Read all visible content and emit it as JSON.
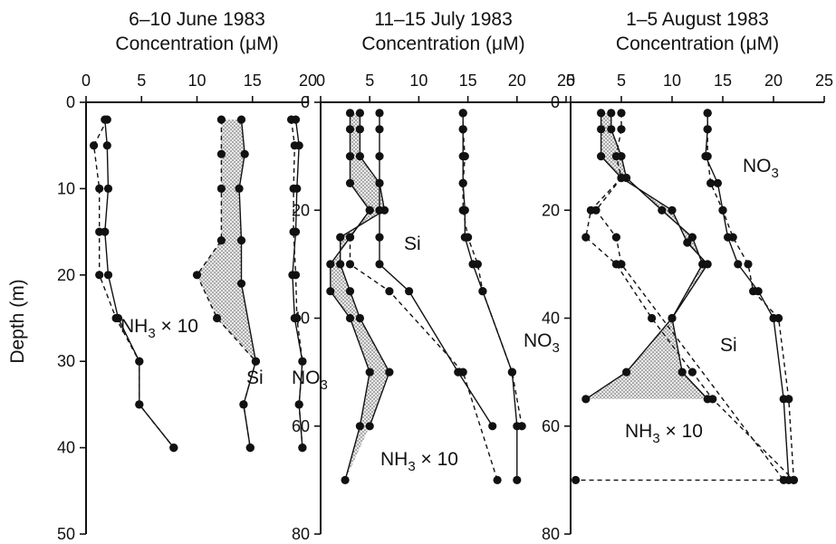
{
  "figure": {
    "y_axis_label": "Depth (m)",
    "title_line2": "Concentration (μM)"
  },
  "chart_data": [
    {
      "type": "line",
      "title": "6–10 June 1983",
      "xlabel": "Concentration (μM)",
      "ylabel": "Depth (m)",
      "xlim": [
        0,
        20
      ],
      "ylim": [
        0,
        50
      ],
      "y_inverted": true,
      "x_ticks": [
        0,
        5,
        10,
        15,
        20
      ],
      "y_ticks": [
        0,
        10,
        20,
        30,
        40,
        50
      ],
      "y_tick_labels_shown": true,
      "series": [
        {
          "name": "NH3 × 10",
          "label_main": "NH",
          "label_sub": "3",
          "label_tail": " × 10",
          "points": [
            [
              1.9,
              2
            ],
            [
              0.7,
              5
            ],
            [
              1.2,
              10
            ],
            [
              1.2,
              15
            ],
            [
              1.2,
              20
            ],
            [
              2.7,
              25
            ],
            [
              4.8,
              30
            ],
            [
              4.8,
              35
            ],
            [
              7.9,
              40
            ]
          ]
        },
        {
          "name": "NH3 × 10",
          "points": [
            [
              1.7,
              2
            ],
            [
              1.9,
              5
            ],
            [
              2.0,
              10
            ],
            [
              1.7,
              15
            ],
            [
              2.0,
              20
            ],
            [
              2.9,
              25
            ],
            [
              4.8,
              30
            ],
            [
              4.8,
              35
            ],
            [
              7.9,
              40
            ]
          ]
        },
        {
          "name": "Si",
          "label_main": "Si",
          "points": [
            [
              12.2,
              2
            ],
            [
              12.2,
              6
            ],
            [
              12.2,
              10
            ],
            [
              12.2,
              16
            ],
            [
              10.0,
              20
            ],
            [
              11.8,
              25
            ],
            [
              15.3,
              30
            ],
            [
              14.2,
              35
            ],
            [
              14.8,
              40
            ]
          ]
        },
        {
          "name": "Si",
          "points": [
            [
              14.0,
              2
            ],
            [
              14.3,
              6
            ],
            [
              13.8,
              10
            ],
            [
              14.0,
              16
            ],
            [
              14.0,
              21
            ],
            [
              15.3,
              30
            ],
            [
              14.2,
              35
            ],
            [
              14.8,
              40
            ]
          ]
        },
        {
          "name": "NO3",
          "label_main": "NO",
          "label_sub": "3",
          "points": [
            [
              18.9,
              2
            ],
            [
              19.2,
              5
            ],
            [
              19.0,
              10
            ],
            [
              18.9,
              15
            ],
            [
              18.6,
              20
            ],
            [
              18.8,
              25
            ],
            [
              19.5,
              30
            ],
            [
              19.2,
              35
            ],
            [
              19.5,
              40
            ]
          ]
        },
        {
          "name": "NO3",
          "points": [
            [
              18.5,
              2
            ],
            [
              18.8,
              5
            ],
            [
              18.7,
              10
            ],
            [
              18.7,
              15
            ],
            [
              18.9,
              20
            ],
            [
              19.0,
              25
            ],
            [
              19.5,
              30
            ],
            [
              19.2,
              35
            ],
            [
              19.5,
              40
            ]
          ]
        }
      ]
    },
    {
      "type": "line",
      "title": "11–15 July 1983",
      "xlabel": "Concentration (μM)",
      "ylabel": "Depth (m)",
      "xlim": [
        0,
        25
      ],
      "ylim": [
        0,
        80
      ],
      "y_inverted": true,
      "x_ticks": [
        0,
        5,
        10,
        15,
        20,
        25
      ],
      "y_ticks": [
        0,
        20,
        40,
        60,
        80
      ],
      "y_tick_labels_shown": true,
      "series": [
        {
          "name": "Si",
          "label_main": "Si",
          "points": [
            [
              3,
              2
            ],
            [
              3,
              5
            ],
            [
              3,
              10
            ],
            [
              3,
              15
            ],
            [
              5,
              20
            ],
            [
              3,
              25
            ],
            [
              1,
              30
            ],
            [
              1,
              35
            ],
            [
              3,
              40
            ],
            [
              5,
              50
            ],
            [
              4,
              60
            ],
            [
              2.5,
              70
            ]
          ]
        },
        {
          "name": "Si",
          "points": [
            [
              4,
              2
            ],
            [
              4,
              5
            ],
            [
              4,
              10
            ],
            [
              6,
              15
            ],
            [
              6.5,
              20
            ],
            [
              2,
              25
            ],
            [
              2,
              30
            ],
            [
              3,
              35
            ],
            [
              4,
              40
            ],
            [
              7,
              50
            ],
            [
              5,
              60
            ]
          ]
        },
        {
          "name": "NO3",
          "label_main": "NO",
          "label_sub": "3",
          "points": [
            [
              6,
              2
            ],
            [
              6,
              5
            ],
            [
              6,
              10
            ],
            [
              6,
              15
            ],
            [
              6,
              20
            ],
            [
              6,
              25
            ],
            [
              6,
              30
            ],
            [
              9,
              35
            ],
            [
              14,
              50
            ],
            [
              17.5,
              60
            ]
          ]
        },
        {
          "name": "NO3",
          "points": [
            [
              14.5,
              2
            ],
            [
              14.5,
              5
            ],
            [
              14.7,
              10
            ],
            [
              14.5,
              15
            ],
            [
              14.5,
              20
            ],
            [
              15,
              25
            ],
            [
              16,
              30
            ],
            [
              16.5,
              35
            ],
            [
              19.5,
              50
            ],
            [
              20.5,
              60
            ]
          ]
        },
        {
          "name": "NO3",
          "points": [
            [
              14.5,
              2
            ],
            [
              14.5,
              5
            ],
            [
              14.5,
              10
            ],
            [
              14.5,
              15
            ],
            [
              14.7,
              20
            ],
            [
              14.7,
              25
            ],
            [
              15.5,
              30
            ],
            [
              16.5,
              35
            ],
            [
              19.5,
              50
            ],
            [
              20,
              60
            ],
            [
              20,
              70
            ]
          ]
        },
        {
          "name": "NH3 × 10",
          "label_main": "NH",
          "label_sub": "3",
          "label_tail": " × 10",
          "points": [
            [
              5,
              20
            ],
            [
              3,
              25
            ],
            [
              3,
              30
            ],
            [
              7,
              35
            ],
            [
              14.5,
              50
            ],
            [
              18,
              70
            ]
          ]
        }
      ]
    },
    {
      "type": "line",
      "title": "1–5 August 1983",
      "xlabel": "Concentration (μM)",
      "ylabel": "Depth (m)",
      "xlim": [
        0,
        25
      ],
      "ylim": [
        0,
        80
      ],
      "y_inverted": true,
      "x_ticks": [
        0,
        5,
        10,
        15,
        20,
        25
      ],
      "y_ticks": [
        0,
        20,
        40,
        60,
        80
      ],
      "y_tick_labels_shown": true,
      "series": [
        {
          "name": "Si",
          "label_main": "Si",
          "points": [
            [
              4,
              2
            ],
            [
              4,
              5
            ],
            [
              5,
              10
            ],
            [
              5.5,
              14
            ],
            [
              9,
              20
            ],
            [
              12,
              25
            ],
            [
              13,
              30
            ],
            [
              10,
              40
            ],
            [
              5.5,
              50
            ],
            [
              1.5,
              55
            ]
          ]
        },
        {
          "name": "Si",
          "points": [
            [
              3,
              2
            ],
            [
              3,
              5
            ],
            [
              3,
              10
            ],
            [
              5,
              14
            ],
            [
              10,
              20
            ],
            [
              11.5,
              26
            ],
            [
              13.5,
              30
            ],
            [
              10,
              40
            ],
            [
              11,
              50
            ],
            [
              13.5,
              55
            ]
          ]
        },
        {
          "name": "NH3 × 10",
          "label_main": "NH",
          "label_sub": "3",
          "label_tail": " × 10",
          "points": [
            [
              5,
              2
            ],
            [
              5,
              5
            ],
            [
              4.5,
              10
            ],
            [
              5,
              14
            ],
            [
              2,
              20
            ],
            [
              1.5,
              25
            ],
            [
              4.5,
              30
            ],
            [
              8,
              40
            ],
            [
              12,
              50
            ],
            [
              14,
              55
            ],
            [
              22,
              70
            ]
          ]
        },
        {
          "name": "NH3 × 10",
          "points": [
            [
              5,
              14
            ],
            [
              2.5,
              20
            ],
            [
              4.5,
              25
            ],
            [
              5,
              30
            ],
            [
              21,
              70
            ],
            [
              0.5,
              70
            ]
          ]
        },
        {
          "name": "NO3",
          "label_main": "NO",
          "label_sub": "3",
          "points": [
            [
              13.5,
              2
            ],
            [
              13.5,
              5
            ],
            [
              13.3,
              10
            ],
            [
              14.5,
              15
            ],
            [
              15,
              20
            ],
            [
              15.5,
              25
            ],
            [
              16.5,
              30
            ],
            [
              18.5,
              35
            ],
            [
              20,
              40
            ],
            [
              21,
              55
            ],
            [
              21.5,
              70
            ]
          ]
        },
        {
          "name": "NO3",
          "points": [
            [
              13.5,
              2
            ],
            [
              13.5,
              5
            ],
            [
              13.5,
              10
            ],
            [
              13.8,
              15
            ],
            [
              15,
              20
            ],
            [
              16,
              25
            ],
            [
              17.5,
              30
            ],
            [
              18,
              35
            ],
            [
              20.5,
              40
            ],
            [
              21.5,
              55
            ],
            [
              22,
              70
            ]
          ]
        }
      ]
    }
  ]
}
